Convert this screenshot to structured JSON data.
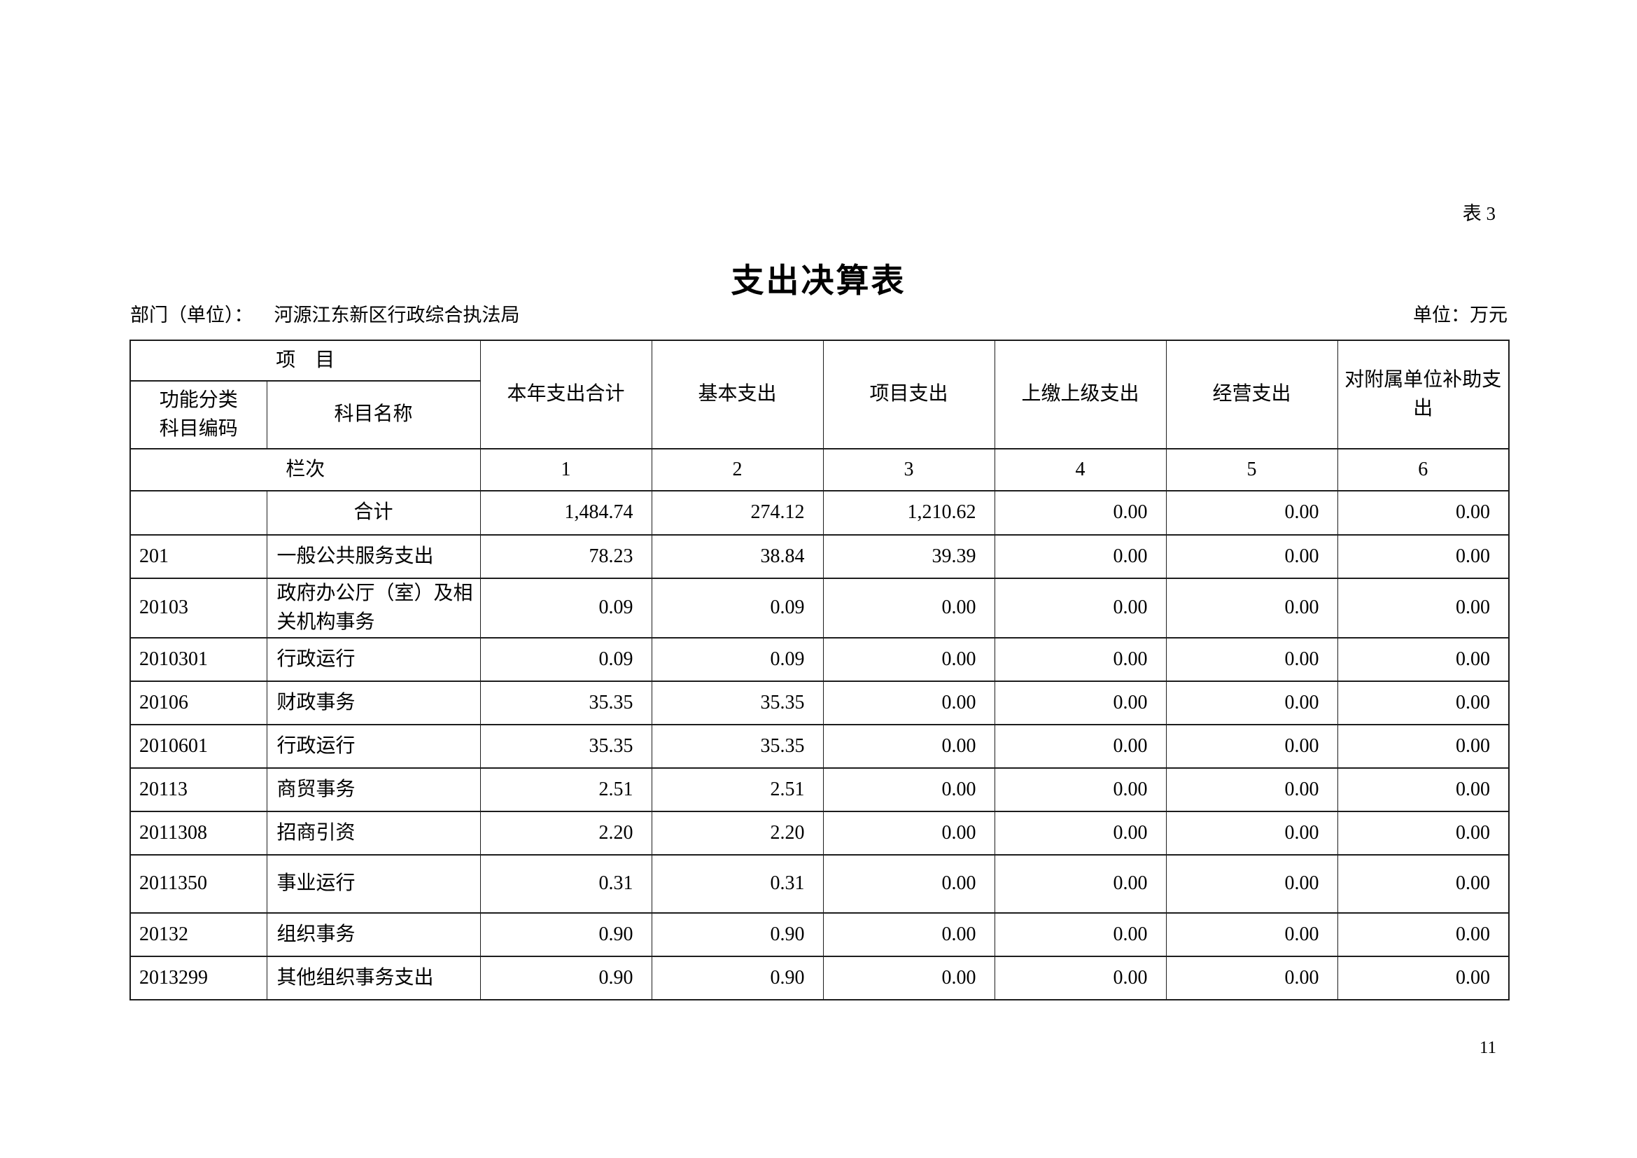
{
  "page": {
    "table_tag": "表 3",
    "title": "支出决算表",
    "department_label": "部门（单位）：",
    "department_value": "河源江东新区行政综合执法局",
    "unit_label": "单位：万元",
    "page_number": "11"
  },
  "table": {
    "header": {
      "item_group": "项　目",
      "code_label_line1": "功能分类",
      "code_label_line2": "科目编码",
      "subject_name": "科目名称",
      "columns": [
        "本年支出合计",
        "基本支出",
        "项目支出",
        "上缴上级支出",
        "经营支出",
        "对附属单位补助支出"
      ],
      "rank_label": "栏次",
      "column_numbers": [
        "1",
        "2",
        "3",
        "4",
        "5",
        "6"
      ]
    },
    "rows": [
      {
        "code": "",
        "name": "合计",
        "name_align": "center",
        "values": [
          "1,484.74",
          "274.12",
          "1,210.62",
          "0.00",
          "0.00",
          "0.00"
        ]
      },
      {
        "code": "201",
        "name": "一般公共服务支出",
        "values": [
          "78.23",
          "38.84",
          "39.39",
          "0.00",
          "0.00",
          "0.00"
        ]
      },
      {
        "code": "20103",
        "name": "政府办公厅（室）及相关机构事务",
        "values": [
          "0.09",
          "0.09",
          "0.00",
          "0.00",
          "0.00",
          "0.00"
        ]
      },
      {
        "code": "2010301",
        "name": "行政运行",
        "values": [
          "0.09",
          "0.09",
          "0.00",
          "0.00",
          "0.00",
          "0.00"
        ]
      },
      {
        "code": "20106",
        "name": "财政事务",
        "values": [
          "35.35",
          "35.35",
          "0.00",
          "0.00",
          "0.00",
          "0.00"
        ]
      },
      {
        "code": "2010601",
        "name": "行政运行",
        "values": [
          "35.35",
          "35.35",
          "0.00",
          "0.00",
          "0.00",
          "0.00"
        ]
      },
      {
        "code": "20113",
        "name": "商贸事务",
        "values": [
          "2.51",
          "2.51",
          "0.00",
          "0.00",
          "0.00",
          "0.00"
        ]
      },
      {
        "code": "2011308",
        "name": "招商引资",
        "values": [
          "2.20",
          "2.20",
          "0.00",
          "0.00",
          "0.00",
          "0.00"
        ]
      },
      {
        "code": "2011350",
        "name": "事业运行",
        "values": [
          "0.31",
          "0.31",
          "0.00",
          "0.00",
          "0.00",
          "0.00"
        ]
      },
      {
        "code": "20132",
        "name": "组织事务",
        "values": [
          "0.90",
          "0.90",
          "0.00",
          "0.00",
          "0.00",
          "0.00"
        ]
      },
      {
        "code": "2013299",
        "name": "其他组织事务支出",
        "values": [
          "0.90",
          "0.90",
          "0.00",
          "0.00",
          "0.00",
          "0.00"
        ]
      }
    ]
  }
}
